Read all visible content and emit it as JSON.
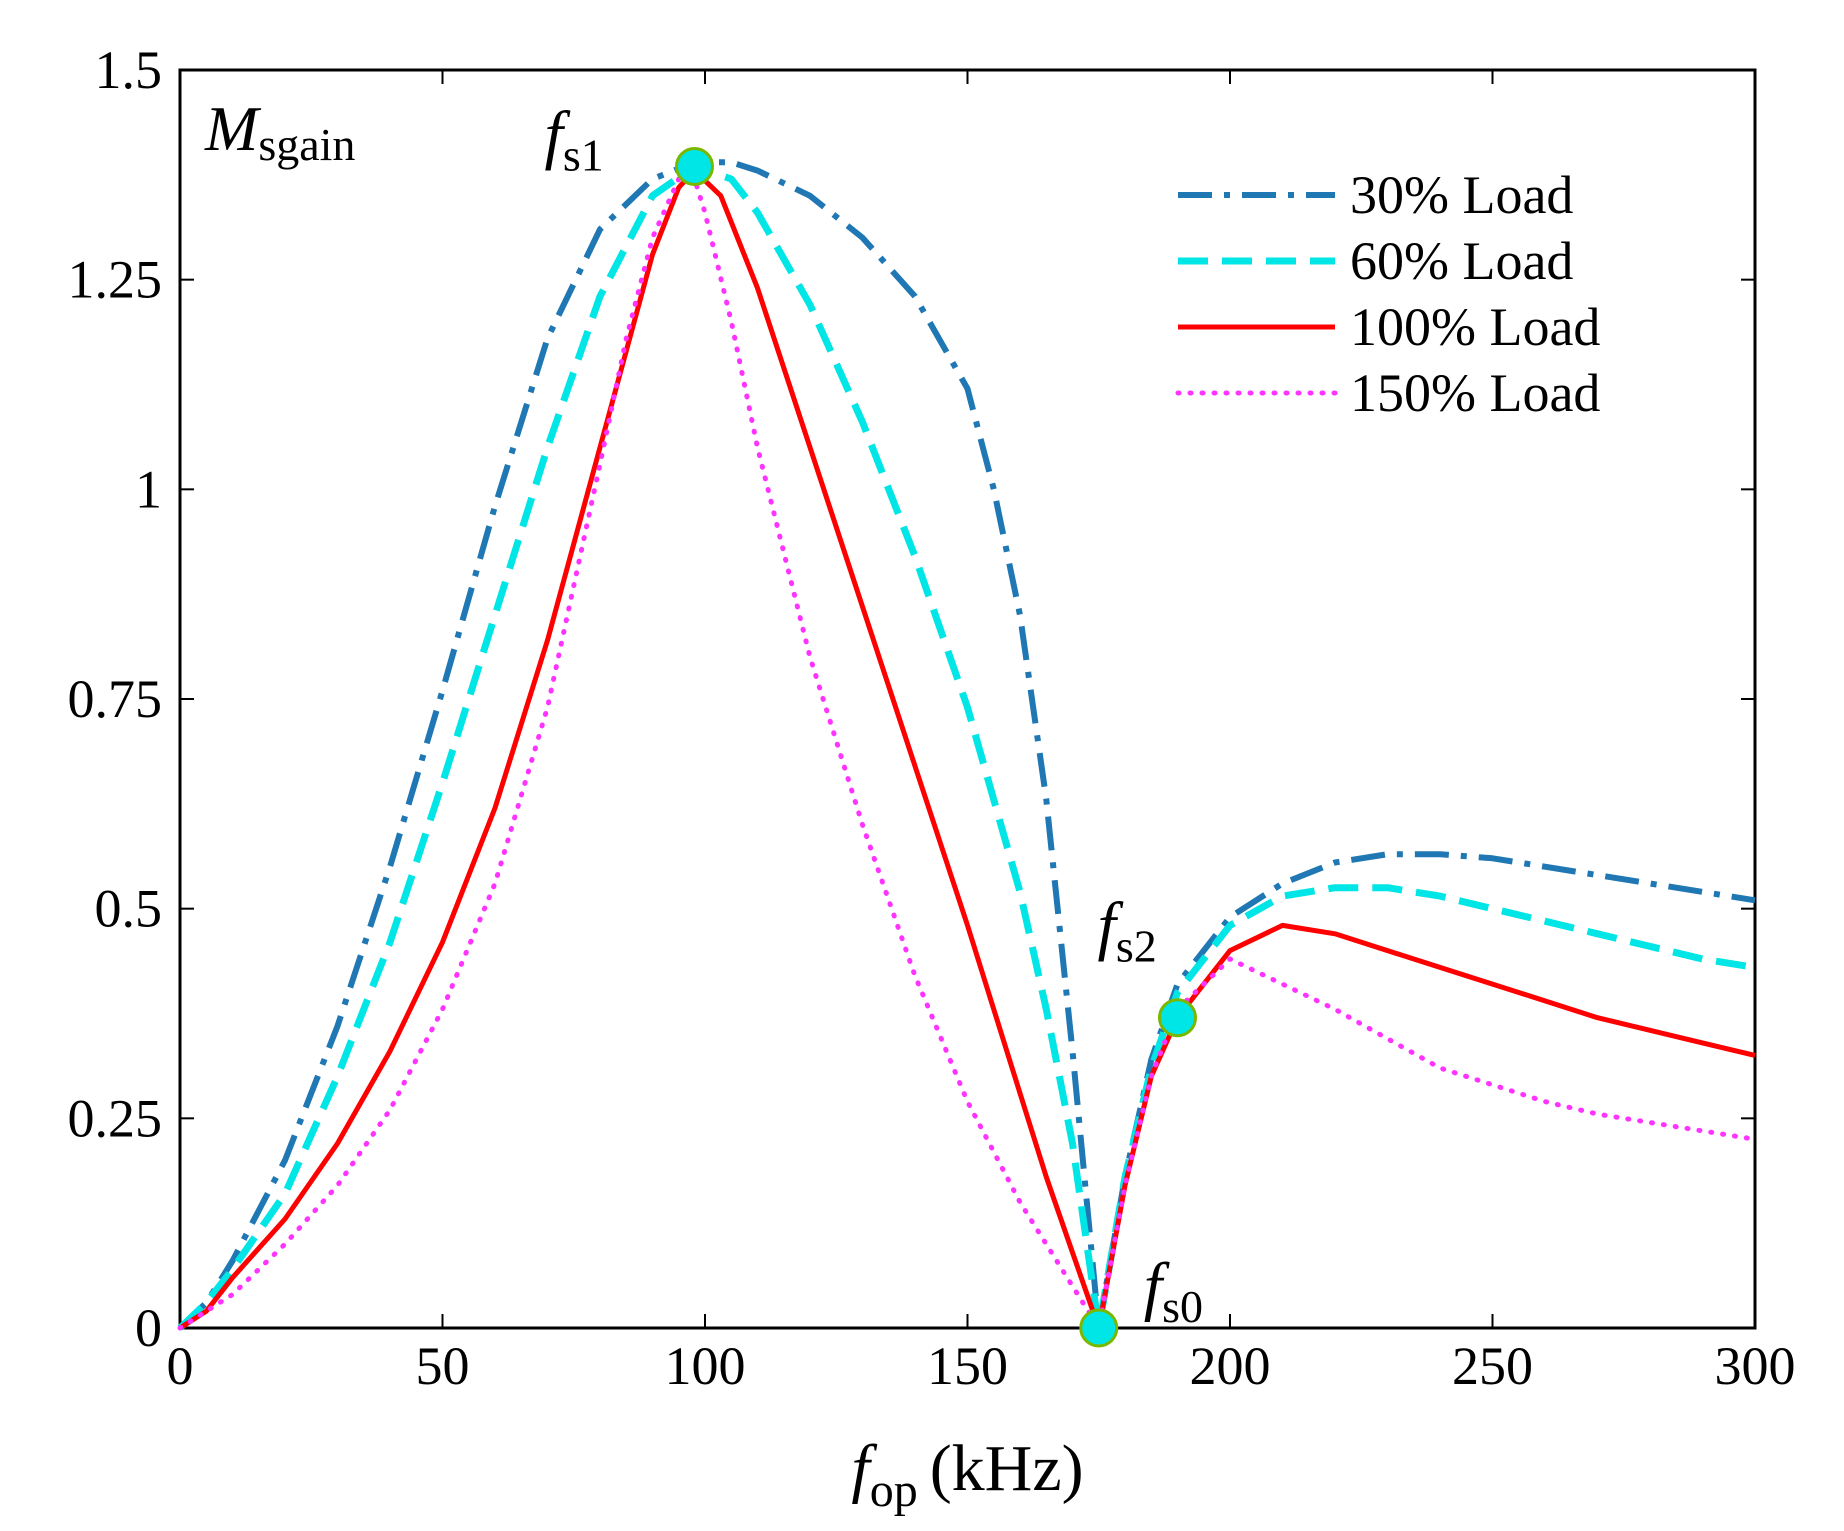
{
  "chart_data": {
    "type": "line",
    "title": "",
    "ylabel_main": "M",
    "ylabel_sub": "sgain",
    "xlabel_main": "f",
    "xlabel_sub": "op",
    "xlabel_unit": "(kHz)",
    "xlim": [
      0,
      300
    ],
    "ylim": [
      0,
      1.5
    ],
    "xticks": [
      0,
      50,
      100,
      150,
      200,
      250,
      300
    ],
    "xtick_labels": [
      "0",
      "50",
      "100",
      "150",
      "200",
      "250",
      "300"
    ],
    "yticks": [
      0,
      0.25,
      0.5,
      0.75,
      1,
      1.25,
      1.5
    ],
    "ytick_labels": [
      "0",
      "0.25",
      "0.5",
      "0.75",
      "1",
      "1.25",
      "1.5"
    ],
    "grid": false,
    "legend_position": "top-right",
    "series": [
      {
        "name": "30% Load",
        "color": "#1f77b4",
        "dash": "dashdot",
        "x": [
          0,
          5,
          10,
          20,
          30,
          40,
          50,
          60,
          70,
          80,
          90,
          98,
          105,
          110,
          120,
          130,
          140,
          150,
          155,
          160,
          165,
          170,
          175,
          180,
          185,
          190,
          200,
          210,
          220,
          230,
          240,
          250,
          260,
          270,
          280,
          290,
          300
        ],
        "y": [
          0,
          0.03,
          0.08,
          0.2,
          0.36,
          0.55,
          0.76,
          0.98,
          1.18,
          1.31,
          1.37,
          1.39,
          1.39,
          1.38,
          1.35,
          1.3,
          1.23,
          1.12,
          1.0,
          0.85,
          0.63,
          0.33,
          0.0,
          0.18,
          0.32,
          0.41,
          0.49,
          0.53,
          0.555,
          0.565,
          0.565,
          0.56,
          0.55,
          0.54,
          0.53,
          0.52,
          0.51
        ]
      },
      {
        "name": "60% Load",
        "color": "#00e5e5",
        "dash": "dashed",
        "x": [
          0,
          5,
          10,
          20,
          30,
          40,
          50,
          60,
          70,
          80,
          90,
          98,
          105,
          110,
          120,
          130,
          140,
          150,
          160,
          165,
          170,
          175,
          180,
          185,
          190,
          200,
          210,
          220,
          230,
          240,
          250,
          260,
          270,
          280,
          290,
          300
        ],
        "y": [
          0,
          0.03,
          0.07,
          0.16,
          0.3,
          0.46,
          0.65,
          0.85,
          1.05,
          1.23,
          1.35,
          1.385,
          1.37,
          1.33,
          1.22,
          1.08,
          0.92,
          0.74,
          0.52,
          0.38,
          0.22,
          0.0,
          0.18,
          0.31,
          0.4,
          0.48,
          0.515,
          0.525,
          0.525,
          0.515,
          0.5,
          0.485,
          0.47,
          0.455,
          0.44,
          0.43
        ]
      },
      {
        "name": "100% Load",
        "color": "#ff0000",
        "dash": "solid",
        "x": [
          0,
          5,
          10,
          20,
          30,
          40,
          50,
          60,
          70,
          80,
          90,
          95,
          98,
          103,
          110,
          120,
          130,
          140,
          150,
          160,
          165,
          170,
          175,
          180,
          185,
          190,
          200,
          210,
          220,
          230,
          240,
          250,
          260,
          270,
          280,
          290,
          300
        ],
        "y": [
          0,
          0.02,
          0.06,
          0.13,
          0.22,
          0.33,
          0.46,
          0.62,
          0.82,
          1.05,
          1.28,
          1.36,
          1.38,
          1.35,
          1.24,
          1.05,
          0.86,
          0.67,
          0.48,
          0.28,
          0.18,
          0.09,
          0.0,
          0.17,
          0.3,
          0.37,
          0.45,
          0.48,
          0.47,
          0.45,
          0.43,
          0.41,
          0.39,
          0.37,
          0.355,
          0.34,
          0.325
        ]
      },
      {
        "name": "150% Load",
        "color": "#ff33ff",
        "dash": "dotted",
        "x": [
          0,
          10,
          20,
          30,
          40,
          50,
          60,
          70,
          80,
          85,
          90,
          95,
          98,
          100,
          105,
          110,
          120,
          130,
          140,
          150,
          160,
          170,
          175,
          180,
          185,
          190,
          200,
          210,
          220,
          230,
          240,
          250,
          260,
          270,
          280,
          290,
          300
        ],
        "y": [
          0,
          0.04,
          0.1,
          0.17,
          0.26,
          0.38,
          0.53,
          0.74,
          1.03,
          1.18,
          1.3,
          1.37,
          1.37,
          1.33,
          1.2,
          1.05,
          0.8,
          0.6,
          0.42,
          0.27,
          0.15,
          0.05,
          0.0,
          0.17,
          0.3,
          0.38,
          0.44,
          0.41,
          0.38,
          0.345,
          0.31,
          0.29,
          0.27,
          0.255,
          0.245,
          0.235,
          0.225
        ]
      }
    ],
    "annotations": [
      {
        "label_main": "f",
        "label_sub": "s1",
        "x": 98,
        "y": 1.385
      },
      {
        "label_main": "f",
        "label_sub": "s2",
        "x": 190,
        "y": 0.37
      },
      {
        "label_main": "f",
        "label_sub": "s0",
        "x": 175,
        "y": 0.0
      }
    ],
    "marker_color": "#00e5e5",
    "marker_edge": "#7ab800"
  }
}
